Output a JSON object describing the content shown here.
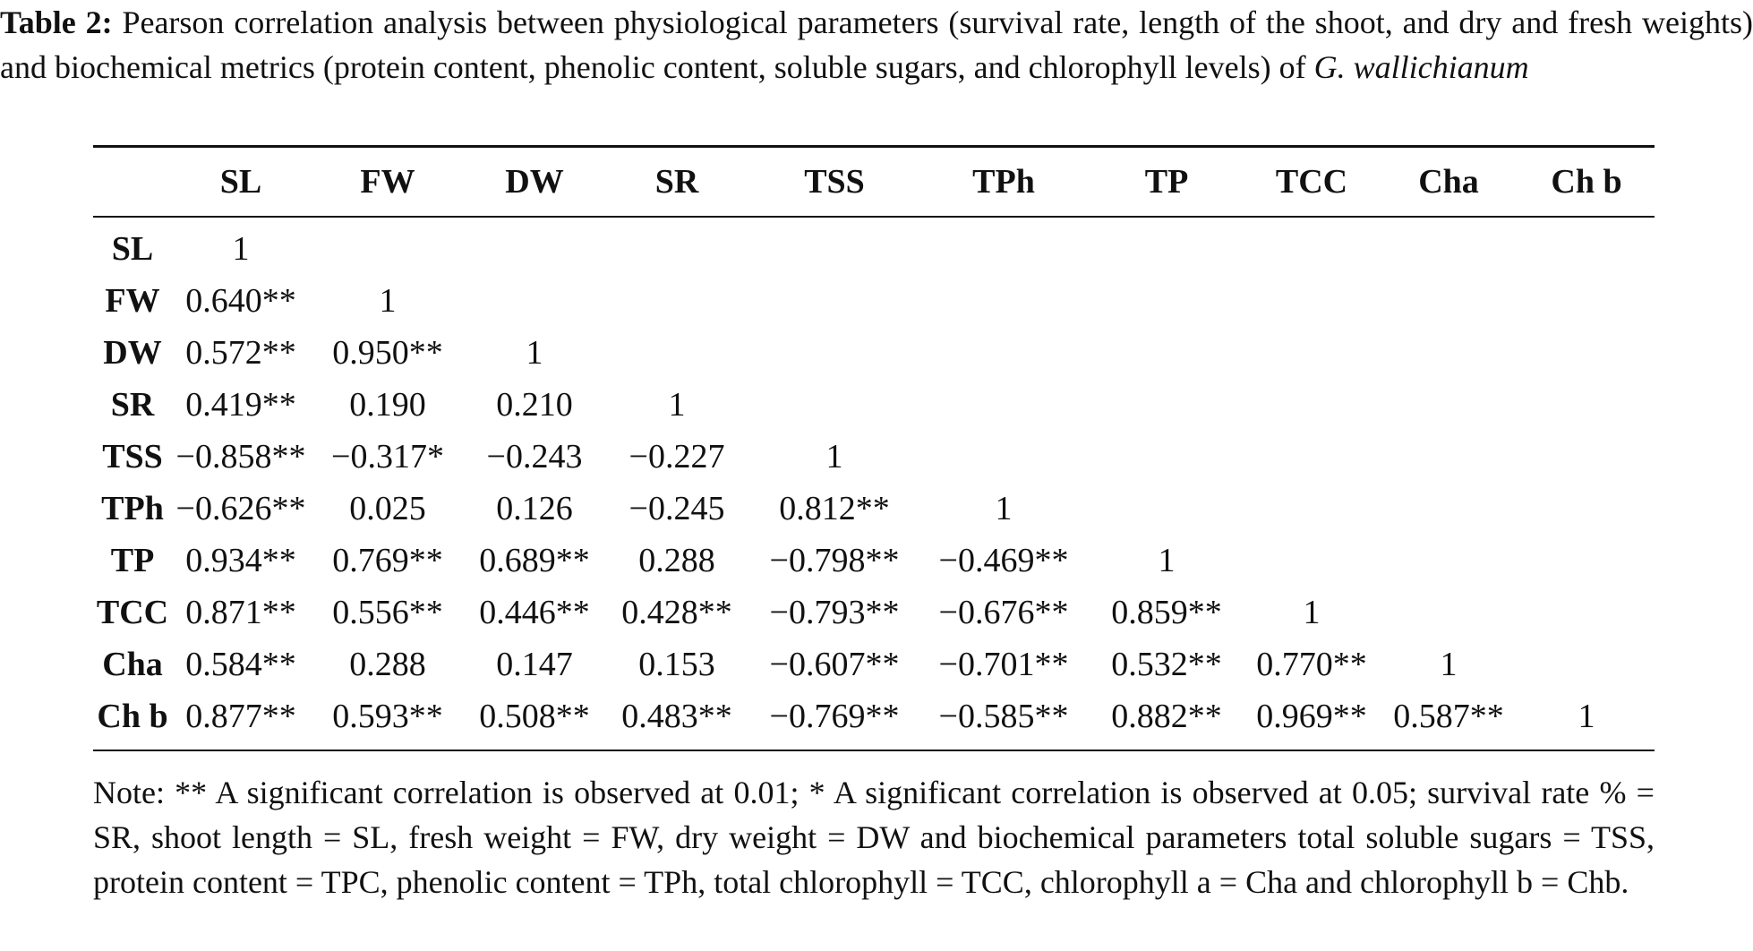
{
  "caption": {
    "label": "Table 2:",
    "text": " Pearson correlation analysis between physiological parameters (survival rate, length of the shoot, and dry and fresh weights) and biochemical metrics (protein content, phenolic content, soluble sugars, and chlorophyll levels) of ",
    "species": "G. wallichianum"
  },
  "table": {
    "corner": "",
    "headers": [
      "SL",
      "FW",
      "DW",
      "SR",
      "TSS",
      "TPh",
      "TP",
      "TCC",
      "Cha",
      "Ch b"
    ],
    "rows": [
      {
        "label": "SL",
        "cells": [
          "1",
          "",
          "",
          "",
          "",
          "",
          "",
          "",
          "",
          ""
        ]
      },
      {
        "label": "FW",
        "cells": [
          "0.640**",
          "1",
          "",
          "",
          "",
          "",
          "",
          "",
          "",
          ""
        ]
      },
      {
        "label": "DW",
        "cells": [
          "0.572**",
          "0.950**",
          "1",
          "",
          "",
          "",
          "",
          "",
          "",
          ""
        ]
      },
      {
        "label": "SR",
        "cells": [
          "0.419**",
          "0.190",
          "0.210",
          "1",
          "",
          "",
          "",
          "",
          "",
          ""
        ]
      },
      {
        "label": "TSS",
        "cells": [
          "−0.858**",
          "−0.317*",
          "−0.243",
          "−0.227",
          "1",
          "",
          "",
          "",
          "",
          ""
        ]
      },
      {
        "label": "TPh",
        "cells": [
          "−0.626**",
          "0.025",
          "0.126",
          "−0.245",
          "0.812**",
          "1",
          "",
          "",
          "",
          ""
        ]
      },
      {
        "label": "TP",
        "cells": [
          "0.934**",
          "0.769**",
          "0.689**",
          "0.288",
          "−0.798**",
          "−0.469**",
          "1",
          "",
          "",
          ""
        ]
      },
      {
        "label": "TCC",
        "cells": [
          "0.871**",
          "0.556**",
          "0.446**",
          "0.428**",
          "−0.793**",
          "−0.676**",
          "0.859**",
          "1",
          "",
          ""
        ]
      },
      {
        "label": "Cha",
        "cells": [
          "0.584**",
          "0.288",
          "0.147",
          "0.153",
          "−0.607**",
          "−0.701**",
          "0.532**",
          "0.770**",
          "1",
          ""
        ]
      },
      {
        "label": "Ch b",
        "cells": [
          "0.877**",
          "0.593**",
          "0.508**",
          "0.483**",
          "−0.769**",
          "−0.585**",
          "0.882**",
          "0.969**",
          "0.587**",
          "1"
        ]
      }
    ]
  },
  "note": "Note: ** A significant correlation is observed at 0.01; * A significant correlation is observed at 0.05; survival rate % = SR, shoot length = SL, fresh weight = FW, dry weight = DW and biochemical parameters total soluble sugars = TSS, protein content = TPC, phenolic content = TPh, total chlorophyll = TCC, chlorophyll a = Cha and chlorophyll b = Chb."
}
